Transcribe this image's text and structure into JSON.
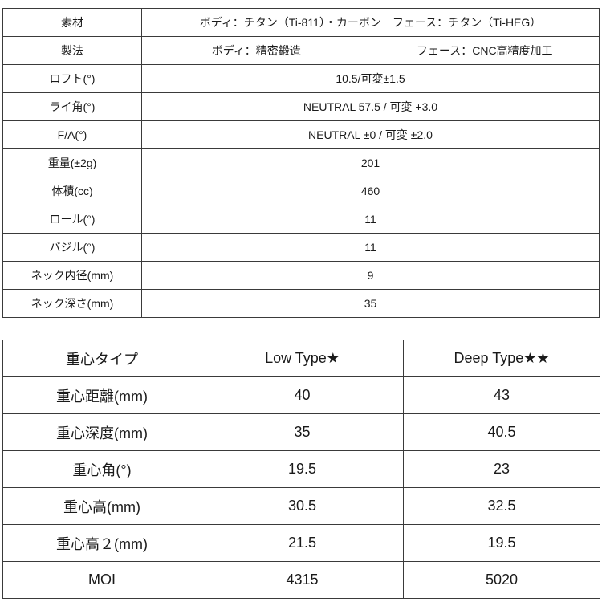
{
  "spec_table": {
    "rows": [
      {
        "label": "素材",
        "value": "ボディ：チタン（Ti-811）・カーボン　フェース：チタン（Ti-HEG）"
      },
      {
        "label": "製法",
        "value_left": "ボディ：精密鍛造",
        "value_right": "フェース：CNC高精度加工"
      },
      {
        "label": "ロフト(°)",
        "value": "10.5/可変±1.5"
      },
      {
        "label": "ライ角(°)",
        "value": "NEUTRAL 57.5 / 可変 +3.0"
      },
      {
        "label": "F/A(°)",
        "value": "NEUTRAL ±0 / 可変 ±2.0"
      },
      {
        "label": "重量(±2g)",
        "value": "201"
      },
      {
        "label": "体積(cc)",
        "value": "460"
      },
      {
        "label": "ロール(°)",
        "value": "11"
      },
      {
        "label": "バジル(°)",
        "value": "11"
      },
      {
        "label": "ネック内径(mm)",
        "value": "9"
      },
      {
        "label": "ネック深さ(mm)",
        "value": "35"
      }
    ]
  },
  "cg_table": {
    "headers": [
      "重心タイプ",
      "Low Type★",
      "Deep Type★★"
    ],
    "rows": [
      {
        "label": "重心距離(mm)",
        "low": "40",
        "deep": "43"
      },
      {
        "label": "重心深度(mm)",
        "low": "35",
        "deep": "40.5"
      },
      {
        "label": "重心角(°)",
        "low": "19.5",
        "deep": "23"
      },
      {
        "label": "重心高(mm)",
        "low": "30.5",
        "deep": "32.5"
      },
      {
        "label": "重心高２(mm)",
        "low": "21.5",
        "deep": "19.5"
      },
      {
        "label": "MOI",
        "low": "4315",
        "deep": "5020"
      }
    ]
  }
}
